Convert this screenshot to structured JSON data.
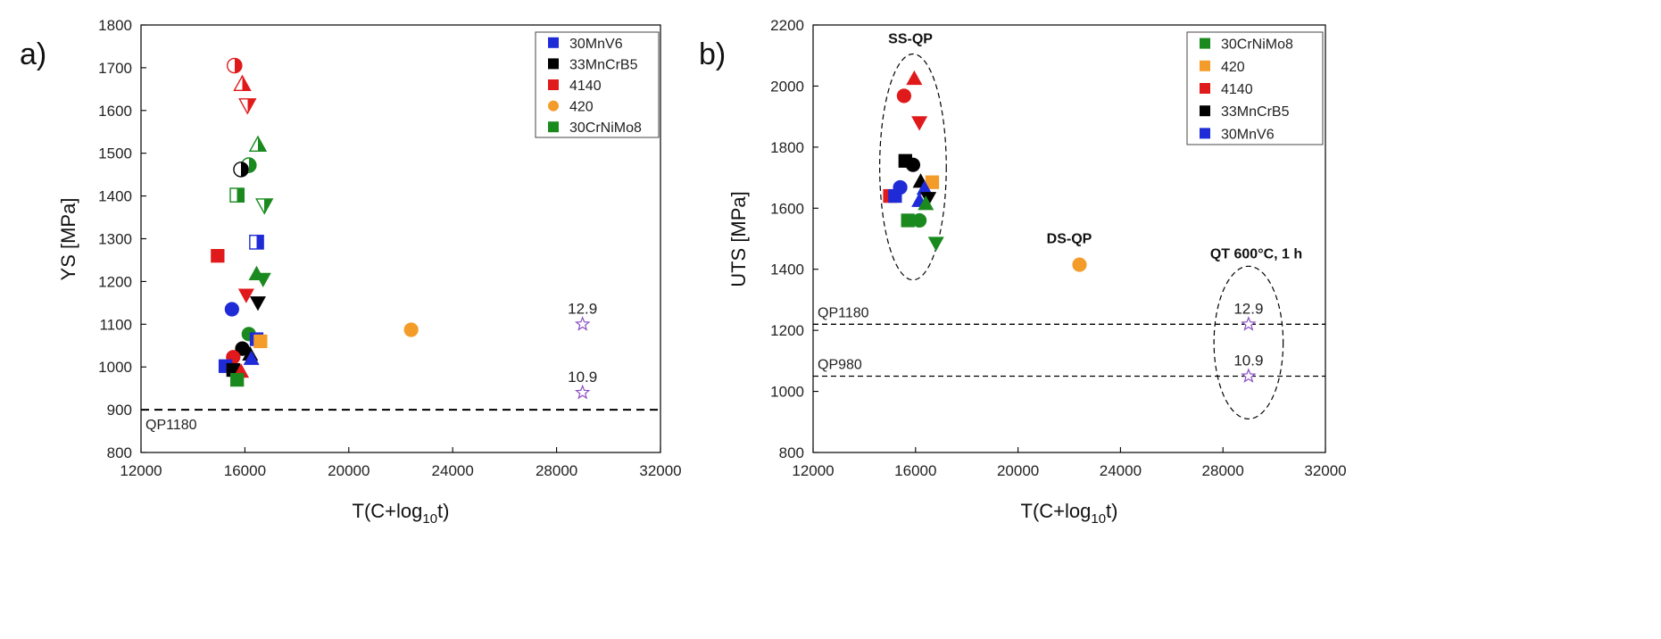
{
  "chart_data": [
    {
      "panel_label": "a)",
      "type": "scatter",
      "xlabel_main": "T(C+log",
      "xlabel_sub": "10",
      "xlabel_end": "t)",
      "ylabel": "YS [MPa]",
      "xlim": [
        12000,
        32000
      ],
      "ylim": [
        800,
        1800
      ],
      "xticks": [
        12000,
        16000,
        20000,
        24000,
        28000,
        32000
      ],
      "yticks": [
        800,
        900,
        1000,
        1100,
        1200,
        1300,
        1400,
        1500,
        1600,
        1700,
        1800
      ],
      "legend_position": "top-right",
      "legend": [
        {
          "label": "30MnV6",
          "color": "#1f2bd6",
          "marker": "square"
        },
        {
          "label": "33MnCrB5",
          "color": "#000000",
          "marker": "square"
        },
        {
          "label": "4140",
          "color": "#e0191b",
          "marker": "square"
        },
        {
          "label": "420",
          "color": "#f39c2a",
          "marker": "circle"
        },
        {
          "label": "30CrNiMo8",
          "color": "#1a8a1f",
          "marker": "square"
        }
      ],
      "reference_lines": [
        {
          "label": "QP1180",
          "y": 900
        }
      ],
      "annotations": [],
      "points": [
        {
          "steel": "4140",
          "x": 15600,
          "y": 1705,
          "marker": "circle",
          "fill": "half"
        },
        {
          "steel": "4140",
          "x": 15900,
          "y": 1662,
          "marker": "triangle-up",
          "fill": "half"
        },
        {
          "steel": "4140",
          "x": 16100,
          "y": 1612,
          "marker": "triangle-down",
          "fill": "half"
        },
        {
          "steel": "30CrNiMo8",
          "x": 16500,
          "y": 1520,
          "marker": "triangle-up",
          "fill": "half"
        },
        {
          "steel": "30CrNiMo8",
          "x": 16150,
          "y": 1472,
          "marker": "circle",
          "fill": "half"
        },
        {
          "steel": "33MnCrB5",
          "x": 15850,
          "y": 1462,
          "marker": "circle",
          "fill": "half"
        },
        {
          "steel": "30CrNiMo8",
          "x": 15700,
          "y": 1402,
          "marker": "square",
          "fill": "half"
        },
        {
          "steel": "30CrNiMo8",
          "x": 16750,
          "y": 1378,
          "marker": "triangle-down",
          "fill": "half"
        },
        {
          "steel": "30MnV6",
          "x": 16450,
          "y": 1292,
          "marker": "square",
          "fill": "half"
        },
        {
          "steel": "4140",
          "x": 14950,
          "y": 1260,
          "marker": "square",
          "fill": "full"
        },
        {
          "steel": "30CrNiMo8",
          "x": 16450,
          "y": 1218,
          "marker": "triangle-up",
          "fill": "full"
        },
        {
          "steel": "30CrNiMo8",
          "x": 16700,
          "y": 1205,
          "marker": "triangle-down",
          "fill": "full"
        },
        {
          "steel": "4140",
          "x": 16050,
          "y": 1168,
          "marker": "triangle-down",
          "fill": "full"
        },
        {
          "steel": "33MnCrB5",
          "x": 16500,
          "y": 1150,
          "marker": "triangle-down",
          "fill": "full"
        },
        {
          "steel": "30MnV6",
          "x": 15500,
          "y": 1135,
          "marker": "circle",
          "fill": "full"
        },
        {
          "steel": "30CrNiMo8",
          "x": 16150,
          "y": 1077,
          "marker": "circle",
          "fill": "full"
        },
        {
          "steel": "30MnV6",
          "x": 16450,
          "y": 1065,
          "marker": "square",
          "fill": "full"
        },
        {
          "steel": "420",
          "x": 16600,
          "y": 1060,
          "marker": "square",
          "fill": "full"
        },
        {
          "steel": "33MnCrB5",
          "x": 15900,
          "y": 1043,
          "marker": "circle",
          "fill": "full"
        },
        {
          "steel": "4140",
          "x": 15550,
          "y": 1023,
          "marker": "circle",
          "fill": "full"
        },
        {
          "steel": "33MnCrB5",
          "x": 16200,
          "y": 1030,
          "marker": "triangle-up",
          "fill": "full"
        },
        {
          "steel": "30MnV6",
          "x": 16250,
          "y": 1020,
          "marker": "triangle-up",
          "fill": "full"
        },
        {
          "steel": "30MnV6",
          "x": 15250,
          "y": 1002,
          "marker": "square",
          "fill": "full"
        },
        {
          "steel": "33MnCrB5",
          "x": 15550,
          "y": 993,
          "marker": "square",
          "fill": "full"
        },
        {
          "steel": "4140",
          "x": 15850,
          "y": 990,
          "marker": "triangle-up",
          "fill": "full"
        },
        {
          "steel": "30CrNiMo8",
          "x": 15700,
          "y": 970,
          "marker": "square",
          "fill": "full"
        },
        {
          "steel": "420",
          "x": 22400,
          "y": 1087,
          "marker": "circle",
          "fill": "full"
        },
        {
          "steel": "12.9",
          "x": 29000,
          "y": 1100,
          "marker": "star",
          "fill": "none",
          "color": "#8a4fc4",
          "label": "12.9"
        },
        {
          "steel": "10.9",
          "x": 29000,
          "y": 940,
          "marker": "star",
          "fill": "none",
          "color": "#8a4fc4",
          "label": "10.9"
        }
      ]
    },
    {
      "panel_label": "b)",
      "type": "scatter",
      "xlabel_main": "T(C+log",
      "xlabel_sub": "10",
      "xlabel_end": "t)",
      "ylabel": "UTS [MPa]",
      "xlim": [
        12000,
        32000
      ],
      "ylim": [
        800,
        2200
      ],
      "xticks": [
        12000,
        16000,
        20000,
        24000,
        28000,
        32000
      ],
      "yticks": [
        800,
        1000,
        1200,
        1400,
        1600,
        1800,
        2000,
        2200
      ],
      "legend_position": "top-right",
      "legend": [
        {
          "label": "30CrNiMo8",
          "color": "#1a8a1f",
          "marker": "square"
        },
        {
          "label": "420",
          "color": "#f39c2a",
          "marker": "square"
        },
        {
          "label": "4140",
          "color": "#e0191b",
          "marker": "square"
        },
        {
          "label": "33MnCrB5",
          "color": "#000000",
          "marker": "square"
        },
        {
          "label": "30MnV6",
          "color": "#1f2bd6",
          "marker": "square"
        }
      ],
      "reference_lines": [
        {
          "label": "QP1180",
          "y": 1220
        },
        {
          "label": "QP980",
          "y": 1050
        }
      ],
      "annotations": [
        {
          "text": "SS-QP",
          "x": 15800,
          "y": 2140
        },
        {
          "text": "DS-QP",
          "x": 22000,
          "y": 1485
        },
        {
          "text": "QT 600°C, 1 h",
          "x": 29300,
          "y": 1435
        }
      ],
      "groups": [
        {
          "cx": 15900,
          "cy": 1735,
          "rx": 1300,
          "ry": 370
        },
        {
          "cx": 29000,
          "cy": 1160,
          "rx": 1350,
          "ry": 250
        }
      ],
      "points": [
        {
          "steel": "4140",
          "x": 15950,
          "y": 2025,
          "marker": "triangle-up",
          "fill": "full"
        },
        {
          "steel": "4140",
          "x": 15550,
          "y": 1968,
          "marker": "circle",
          "fill": "full"
        },
        {
          "steel": "4140",
          "x": 16150,
          "y": 1880,
          "marker": "triangle-down",
          "fill": "full"
        },
        {
          "steel": "33MnCrB5",
          "x": 15600,
          "y": 1755,
          "marker": "square",
          "fill": "full"
        },
        {
          "steel": "33MnCrB5",
          "x": 15900,
          "y": 1742,
          "marker": "circle",
          "fill": "full"
        },
        {
          "steel": "33MnCrB5",
          "x": 16200,
          "y": 1688,
          "marker": "triangle-up",
          "fill": "full"
        },
        {
          "steel": "420",
          "x": 16650,
          "y": 1685,
          "marker": "square",
          "fill": "full"
        },
        {
          "steel": "30MnV6",
          "x": 15400,
          "y": 1668,
          "marker": "circle",
          "fill": "full"
        },
        {
          "steel": "30MnV6",
          "x": 16350,
          "y": 1665,
          "marker": "triangle-up",
          "fill": "full"
        },
        {
          "steel": "4140",
          "x": 15000,
          "y": 1640,
          "marker": "square",
          "fill": "full"
        },
        {
          "steel": "30MnV6",
          "x": 15200,
          "y": 1640,
          "marker": "square",
          "fill": "full"
        },
        {
          "steel": "33MnCrB5",
          "x": 16500,
          "y": 1632,
          "marker": "triangle-down",
          "fill": "full"
        },
        {
          "steel": "30MnV6",
          "x": 16150,
          "y": 1625,
          "marker": "triangle-up",
          "fill": "full"
        },
        {
          "steel": "30CrNiMo8",
          "x": 16400,
          "y": 1615,
          "marker": "triangle-up",
          "fill": "full"
        },
        {
          "steel": "30CrNiMo8",
          "x": 15700,
          "y": 1560,
          "marker": "square",
          "fill": "full"
        },
        {
          "steel": "30CrNiMo8",
          "x": 16150,
          "y": 1560,
          "marker": "circle",
          "fill": "full"
        },
        {
          "steel": "30CrNiMo8",
          "x": 16800,
          "y": 1485,
          "marker": "triangle-down",
          "fill": "full"
        },
        {
          "steel": "420",
          "x": 22400,
          "y": 1415,
          "marker": "circle",
          "fill": "full"
        },
        {
          "steel": "12.9",
          "x": 29000,
          "y": 1220,
          "marker": "star",
          "fill": "none",
          "color": "#8a4fc4",
          "label": "12.9"
        },
        {
          "steel": "10.9",
          "x": 29000,
          "y": 1050,
          "marker": "star",
          "fill": "none",
          "color": "#8a4fc4",
          "label": "10.9"
        }
      ]
    }
  ]
}
